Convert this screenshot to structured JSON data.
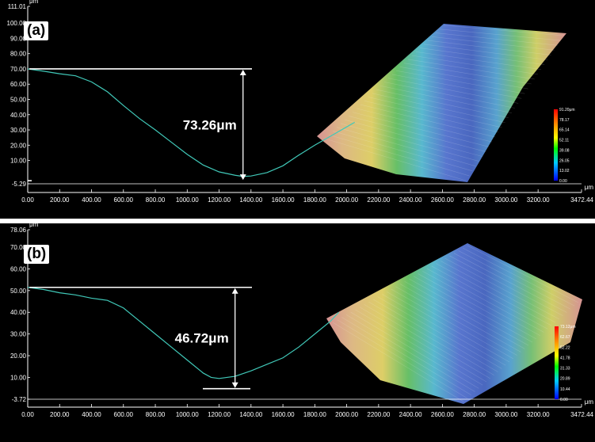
{
  "chart_data": [
    {
      "type": "line",
      "panel_label": "(a)",
      "unit_y": "μm",
      "unit_x": "μm",
      "ylim": [
        -5.29,
        111.01
      ],
      "xlim": [
        0,
        3472.44
      ],
      "y_ticks": [
        "111.01",
        "100.00",
        "90.00",
        "80.00",
        "70.00",
        "60.00",
        "50.00",
        "40.00",
        "30.00",
        "20.00",
        "10.00",
        "-5.29"
      ],
      "y_tick_values": [
        111.01,
        100,
        90,
        80,
        70,
        60,
        50,
        40,
        30,
        20,
        10,
        -5.29
      ],
      "x_ticks": [
        "0.00",
        "200.00",
        "400.00",
        "600.00",
        "800.00",
        "1000.00",
        "1200.00",
        "1400.00",
        "1600.00",
        "1800.00",
        "2000.00",
        "2200.00",
        "2400.00",
        "2600.00",
        "2800.00",
        "3000.00",
        "3200.00",
        "3472.44"
      ],
      "x_tick_values": [
        0,
        200,
        400,
        600,
        800,
        1000,
        1200,
        1400,
        1600,
        1800,
        2000,
        2200,
        2400,
        2600,
        2800,
        3000,
        3200,
        3472.44
      ],
      "profile": {
        "x": [
          0,
          100,
          200,
          300,
          400,
          500,
          600,
          700,
          800,
          900,
          1000,
          1100,
          1200,
          1300,
          1350,
          1400,
          1500,
          1600,
          1700,
          1800,
          1900,
          2000,
          2050
        ],
        "y": [
          70.0,
          68.5,
          66.8,
          65.5,
          61.5,
          55.0,
          46.0,
          37.5,
          30.0,
          22.0,
          14.0,
          7.0,
          2.5,
          0.3,
          -0.5,
          -0.2,
          2.0,
          6.5,
          13.5,
          20.0,
          26.0,
          32.0,
          35.0
        ]
      },
      "measure": {
        "top_y": 70.0,
        "bottom_y": -3.26,
        "x": 1350,
        "label": "73.26μm"
      },
      "colorbar": {
        "labels": [
          "91.20μm",
          "78.17",
          "65.14",
          "52.11",
          "39.08",
          "26.05",
          "13.02",
          "0.00"
        ]
      }
    },
    {
      "type": "line",
      "panel_label": "(b)",
      "unit_y": "μm",
      "unit_x": "μm",
      "ylim": [
        -3.72,
        78.06
      ],
      "xlim": [
        0,
        3472.44
      ],
      "y_ticks": [
        "78.06",
        "70.00",
        "60.00",
        "50.00",
        "40.00",
        "30.00",
        "20.00",
        "10.00",
        "-3.72"
      ],
      "y_tick_values": [
        78.06,
        70,
        60,
        50,
        40,
        30,
        20,
        10,
        -3.72
      ],
      "x_ticks": [
        "0.00",
        "200.00",
        "400.00",
        "600.00",
        "800.00",
        "1000.00",
        "1200.00",
        "1400.00",
        "1600.00",
        "1800.00",
        "2000.00",
        "2200.00",
        "2400.00",
        "2600.00",
        "2800.00",
        "3000.00",
        "3200.00",
        "3472.44"
      ],
      "x_tick_values": [
        0,
        200,
        400,
        600,
        800,
        1000,
        1200,
        1400,
        1600,
        1800,
        2000,
        2200,
        2400,
        2600,
        2800,
        3000,
        3200,
        3472.44
      ],
      "profile": {
        "x": [
          0,
          100,
          200,
          300,
          400,
          500,
          600,
          700,
          800,
          900,
          1000,
          1100,
          1150,
          1200,
          1300,
          1400,
          1500,
          1600,
          1700,
          1800,
          1900,
          1950
        ],
        "y": [
          51.5,
          50.5,
          49.0,
          48.0,
          46.5,
          45.5,
          42.0,
          36.0,
          30.0,
          24.0,
          18.0,
          12.0,
          10.0,
          9.5,
          10.5,
          13.0,
          16.0,
          19.0,
          24.0,
          30.0,
          36.0,
          40.0
        ]
      },
      "measure": {
        "top_y": 51.5,
        "bottom_y": 4.78,
        "x": 1300,
        "label": "46.72μm"
      },
      "colorbar": {
        "labels": [
          "73.12μm",
          "62.67",
          "52.22",
          "41.78",
          "31.33",
          "20.89",
          "10.44",
          "0.00"
        ]
      }
    }
  ]
}
